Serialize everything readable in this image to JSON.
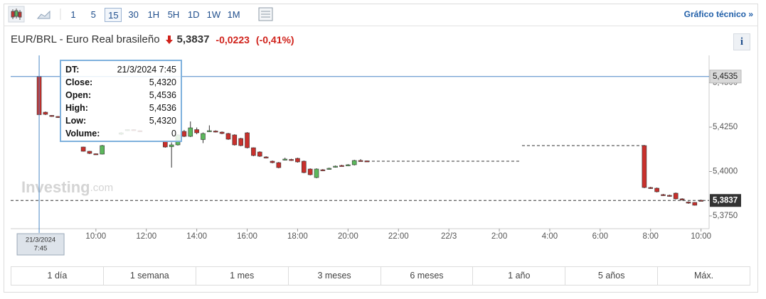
{
  "toolbar": {
    "periods": [
      "1",
      "5",
      "15",
      "30",
      "1H",
      "5H",
      "1D",
      "1W",
      "1M"
    ],
    "active": 2,
    "link": "Gráfico técnico »"
  },
  "header": {
    "symbol": "EUR/BRL - Euro Real brasileño",
    "price": "5,3837",
    "change": "-0,0223",
    "change_pct": "(-0,41%)",
    "info": "i"
  },
  "tooltip": {
    "rows": [
      [
        "DT:",
        "21/3/2024 7:45"
      ],
      [
        "Close:",
        "5,4320"
      ],
      [
        "Open:",
        "5,4536"
      ],
      [
        "High:",
        "5,4536"
      ],
      [
        "Low:",
        "5,4320"
      ],
      [
        "Volume:",
        "0"
      ]
    ]
  },
  "chart_data": {
    "type": "candlestick",
    "x": [
      7.75,
      8,
      8.25,
      8.5,
      9.5,
      9.75,
      10,
      10.25,
      11,
      11.25,
      11.5,
      11.75,
      12.75,
      13,
      13.25,
      13.5,
      13.75,
      14,
      14.25,
      14.5,
      14.75,
      15,
      15.25,
      15.5,
      15.75,
      16,
      16.25,
      16.5,
      16.75,
      17,
      17.25,
      17.5,
      17.75,
      18,
      18.25,
      18.5,
      18.75,
      19,
      19.25,
      19.5,
      19.75,
      20,
      20.25,
      20.5,
      20.75,
      31.75,
      32,
      32.25,
      32.5,
      32.75,
      33,
      33.25,
      33.5,
      33.75,
      34
    ],
    "open": [
      5.4536,
      5.4334,
      5.4316,
      5.431,
      5.4138,
      5.4114,
      5.41,
      5.4098,
      5.421,
      5.4232,
      5.4236,
      5.423,
      5.417,
      5.414,
      5.415,
      5.4226,
      5.4198,
      5.4236,
      5.418,
      5.4226,
      5.4228,
      5.4222,
      5.4214,
      5.4206,
      5.4186,
      5.4218,
      5.4134,
      5.411,
      5.4082,
      5.4058,
      5.405,
      5.4066,
      5.4068,
      5.4074,
      5.4058,
      5.4014,
      5.3966,
      5.401,
      5.4014,
      5.4026,
      5.4034,
      5.4034,
      5.4038,
      5.4062,
      5.406,
      5.4146,
      5.391,
      5.3906,
      5.387,
      5.3866,
      5.3878,
      5.3846,
      5.3828,
      5.3826,
      5.3838
    ],
    "high": [
      5.4536,
      5.4338,
      5.4318,
      5.4312,
      5.414,
      5.4116,
      5.4102,
      5.415,
      5.4222,
      5.4238,
      5.4238,
      5.4232,
      5.4174,
      5.4164,
      5.421,
      5.4234,
      5.4282,
      5.4248,
      5.422,
      5.426,
      5.4232,
      5.4226,
      5.4218,
      5.421,
      5.419,
      5.4222,
      5.4136,
      5.4114,
      5.4086,
      5.4062,
      5.4054,
      5.4078,
      5.4072,
      5.4078,
      5.4062,
      5.4018,
      5.4018,
      5.4014,
      5.4022,
      5.4034,
      5.4038,
      5.4042,
      5.4066,
      5.407,
      5.4062,
      5.415,
      5.3914,
      5.391,
      5.3874,
      5.387,
      5.3882,
      5.385,
      5.3832,
      5.3828,
      5.3842
    ],
    "low": [
      5.432,
      5.4318,
      5.4308,
      5.4302,
      5.4112,
      5.4098,
      5.4094,
      5.4096,
      5.4206,
      5.4228,
      5.423,
      5.4222,
      5.4134,
      5.4022,
      5.4146,
      5.4194,
      5.4194,
      5.421,
      5.416,
      5.4222,
      5.422,
      5.421,
      5.4178,
      5.4146,
      5.4142,
      5.413,
      5.4086,
      5.4082,
      5.4074,
      5.4046,
      5.4018,
      5.4062,
      5.406,
      5.405,
      5.399,
      5.3978,
      5.3962,
      5.4002,
      5.401,
      5.4022,
      5.4028,
      5.403,
      5.4034,
      5.4056,
      5.4054,
      5.3906,
      5.3902,
      5.3882,
      5.3862,
      5.3858,
      5.3842,
      5.3836,
      5.3818,
      5.3808,
      5.3834
    ],
    "close": [
      5.432,
      5.4322,
      5.431,
      5.4304,
      5.4114,
      5.4102,
      5.4096,
      5.4146,
      5.4218,
      5.4236,
      5.4232,
      5.4226,
      5.4138,
      5.415,
      5.4206,
      5.4198,
      5.4246,
      5.4218,
      5.4214,
      5.423,
      5.4224,
      5.4214,
      5.4182,
      5.415,
      5.4146,
      5.4134,
      5.409,
      5.4086,
      5.4078,
      5.405,
      5.4022,
      5.407,
      5.4064,
      5.4054,
      5.3994,
      5.3982,
      5.4014,
      5.4006,
      5.4018,
      5.403,
      5.4032,
      5.4038,
      5.4062,
      5.406,
      5.4058,
      5.391,
      5.3906,
      5.3886,
      5.3866,
      5.3862,
      5.3846,
      5.384,
      5.3822,
      5.381,
      5.3837
    ],
    "colors": {
      "up": "#5cb85c",
      "down": "#c9302c"
    },
    "gap_lines": [
      {
        "x": [
          20.75,
          26.8
        ],
        "value": 5.4058
      },
      {
        "x": [
          26.9,
          31.75
        ],
        "value": 5.4146
      }
    ],
    "xlim": [
      6.62,
      34.32
    ],
    "ylim": [
      5.3678,
      5.4654
    ],
    "xticks": [
      {
        "value": 10,
        "label": "10:00"
      },
      {
        "value": 12,
        "label": "12:00"
      },
      {
        "value": 14,
        "label": "14:00"
      },
      {
        "value": 16,
        "label": "16:00"
      },
      {
        "value": 18,
        "label": "18:00"
      },
      {
        "value": 20,
        "label": "20:00"
      },
      {
        "value": 22,
        "label": "22:00"
      },
      {
        "value": 24,
        "label": "22/3"
      },
      {
        "value": 26,
        "label": "2:00"
      },
      {
        "value": 28,
        "label": "4:00"
      },
      {
        "value": 30,
        "label": "6:00"
      },
      {
        "value": 32,
        "label": "8:00"
      },
      {
        "value": 34,
        "label": "10:00"
      }
    ],
    "yticks": [
      {
        "value": 5.375,
        "label": "5,3750"
      },
      {
        "value": 5.4,
        "label": "5,4000"
      },
      {
        "value": 5.425,
        "label": "5,4250"
      },
      {
        "value": 5.45,
        "label": "5,4500"
      }
    ],
    "crosshair": {
      "x": 7.75,
      "value": 5.4535,
      "label": "5,4535",
      "x_date": "21/3/2024",
      "x_time": "7:45"
    },
    "last": {
      "value": 5.3837,
      "label": "5,3837"
    },
    "watermark": [
      "Investing",
      ".com"
    ]
  },
  "ranges": [
    "1 día",
    "1 semana",
    "1 mes",
    "3 meses",
    "6 meses",
    "1 año",
    "5 años",
    "Máx."
  ]
}
